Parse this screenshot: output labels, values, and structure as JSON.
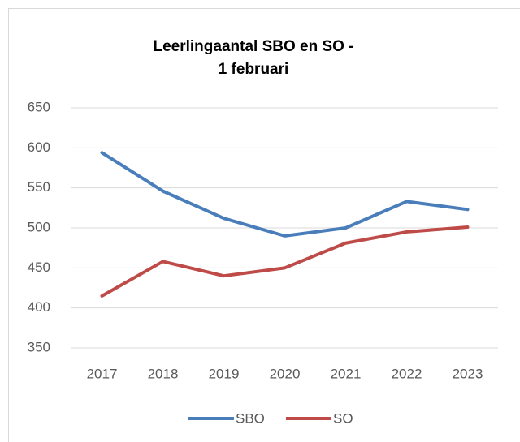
{
  "chart_data": {
    "type": "line",
    "title": [
      "Leerlingaantal SBO en SO -",
      "1 februari"
    ],
    "categories": [
      "2017",
      "2018",
      "2019",
      "2020",
      "2021",
      "2022",
      "2023"
    ],
    "series": [
      {
        "name": "SBO",
        "color": "#4a7ebb",
        "values": [
          594,
          546,
          512,
          490,
          500,
          533,
          523
        ]
      },
      {
        "name": "SO",
        "color": "#be4b48",
        "values": [
          415,
          458,
          440,
          450,
          481,
          495,
          501
        ]
      }
    ],
    "ylim": [
      350,
      650
    ],
    "yticks": [
      350,
      400,
      450,
      500,
      550,
      600,
      650
    ],
    "grid": true,
    "legend": "bottom"
  }
}
